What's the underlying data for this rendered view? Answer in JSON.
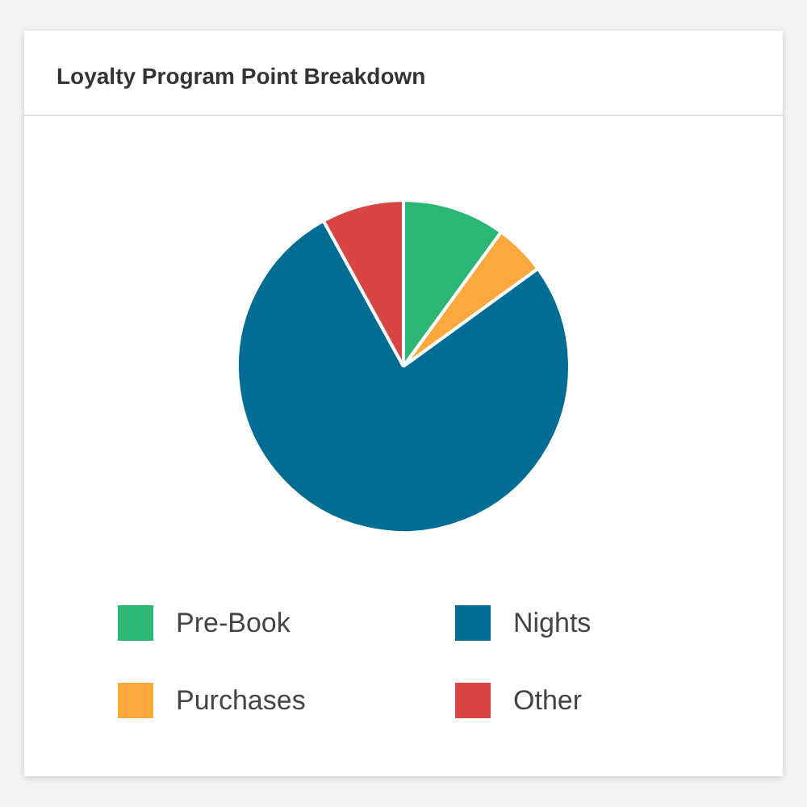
{
  "chart_data": {
    "type": "pie",
    "title": "Loyalty Program Point Breakdown",
    "categories": [
      "Pre-Book",
      "Purchases",
      "Nights",
      "Other"
    ],
    "values": [
      10,
      5,
      77,
      8
    ],
    "colors": [
      "#2bb673",
      "#fca83f",
      "#016d94",
      "#d94545"
    ],
    "legend": "bottom"
  }
}
